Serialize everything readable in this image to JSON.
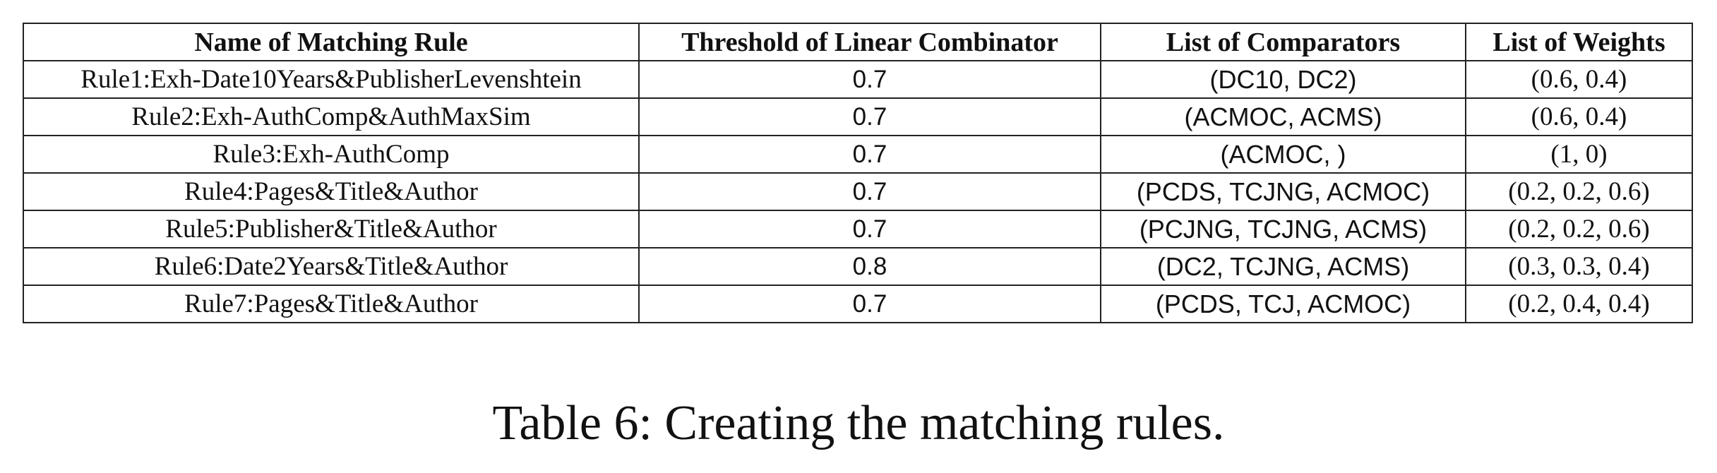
{
  "table": {
    "headers": [
      "Name of Matching Rule",
      "Threshold of Linear Combinator",
      "List of Comparators",
      "List of Weights"
    ],
    "rows": [
      [
        "Rule1:Exh-Date10Years&PublisherLevenshtein",
        "0.7",
        "(DC10, DC2)",
        "(0.6, 0.4)"
      ],
      [
        "Rule2:Exh-AuthComp&AuthMaxSim",
        "0.7",
        "(ACMOC, ACMS)",
        "(0.6, 0.4)"
      ],
      [
        "Rule3:Exh-AuthComp",
        "0.7",
        "(ACMOC, )",
        "(1, 0)"
      ],
      [
        "Rule4:Pages&Title&Author",
        "0.7",
        "(PCDS, TCJNG, ACMOC)",
        "(0.2, 0.2, 0.6)"
      ],
      [
        "Rule5:Publisher&Title&Author",
        "0.7",
        "(PCJNG, TCJNG, ACMS)",
        "(0.2, 0.2, 0.6)"
      ],
      [
        "Rule6:Date2Years&Title&Author",
        "0.8",
        "(DC2, TCJNG, ACMS)",
        "(0.3, 0.3, 0.4)"
      ],
      [
        "Rule7:Pages&Title&Author",
        "0.7",
        "(PCDS, TCJ, ACMOC)",
        "(0.2, 0.4, 0.4)"
      ]
    ]
  },
  "caption": "Table 6: Creating the matching rules."
}
